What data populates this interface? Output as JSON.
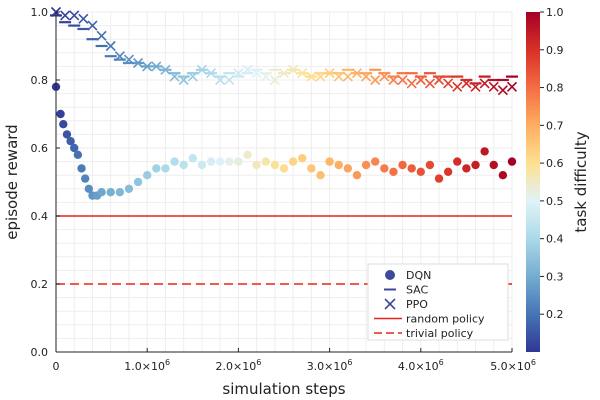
{
  "chart_data": {
    "type": "scatter",
    "xlabel": "simulation steps",
    "ylabel": "episode reward",
    "xlim": [
      0,
      5000000
    ],
    "ylim": [
      0,
      1
    ],
    "x_ticks": [
      0,
      1000000,
      2000000,
      3000000,
      4000000,
      5000000
    ],
    "x_tick_labels": [
      "0",
      "1.0×10",
      "2.0×10",
      "3.0×10",
      "4.0×10",
      "5.0×10"
    ],
    "x_tick_exponent": "6",
    "y_ticks": [
      0,
      0.2,
      0.4,
      0.6,
      0.8,
      1.0
    ],
    "y_tick_labels": [
      "0.0",
      "0.2",
      "0.4",
      "0.6",
      "0.8",
      "1.0"
    ],
    "grid": true,
    "legend_position": "bottom-right",
    "colorbar": {
      "label": "task difficulty",
      "range": [
        0.1,
        1.0
      ],
      "ticks": [
        0.2,
        0.3,
        0.4,
        0.5,
        0.6,
        0.7,
        0.8,
        0.9,
        1.0
      ],
      "tick_labels": [
        "0.2",
        "0.3",
        "0.4",
        "0.5",
        "0.6",
        "0.7",
        "0.8",
        "0.9",
        "1.0"
      ],
      "colormap": [
        "#313695",
        "#4575b4",
        "#74add1",
        "#abd9e9",
        "#e0f3f8",
        "#fee090",
        "#fdae61",
        "#f46d43",
        "#d73027",
        "#a50026"
      ]
    },
    "series": [
      {
        "name": "DQN",
        "marker": "circle",
        "points": [
          [
            0,
            0.78
          ],
          [
            50000,
            0.7
          ],
          [
            80000,
            0.67
          ],
          [
            120000,
            0.64
          ],
          [
            160000,
            0.62
          ],
          [
            200000,
            0.6
          ],
          [
            240000,
            0.58
          ],
          [
            280000,
            0.54
          ],
          [
            320000,
            0.51
          ],
          [
            360000,
            0.48
          ],
          [
            400000,
            0.46
          ],
          [
            450000,
            0.46
          ],
          [
            500000,
            0.47
          ],
          [
            600000,
            0.47
          ],
          [
            700000,
            0.47
          ],
          [
            800000,
            0.48
          ],
          [
            900000,
            0.5
          ],
          [
            1000000,
            0.52
          ],
          [
            1100000,
            0.54
          ],
          [
            1200000,
            0.54
          ],
          [
            1300000,
            0.56
          ],
          [
            1400000,
            0.55
          ],
          [
            1500000,
            0.57
          ],
          [
            1600000,
            0.55
          ],
          [
            1700000,
            0.56
          ],
          [
            1800000,
            0.56
          ],
          [
            1900000,
            0.56
          ],
          [
            2000000,
            0.56
          ],
          [
            2100000,
            0.58
          ],
          [
            2200000,
            0.55
          ],
          [
            2300000,
            0.56
          ],
          [
            2400000,
            0.55
          ],
          [
            2500000,
            0.54
          ],
          [
            2600000,
            0.56
          ],
          [
            2700000,
            0.57
          ],
          [
            2800000,
            0.54
          ],
          [
            2900000,
            0.52
          ],
          [
            3000000,
            0.56
          ],
          [
            3100000,
            0.55
          ],
          [
            3200000,
            0.54
          ],
          [
            3300000,
            0.52
          ],
          [
            3400000,
            0.55
          ],
          [
            3500000,
            0.56
          ],
          [
            3600000,
            0.54
          ],
          [
            3700000,
            0.53
          ],
          [
            3800000,
            0.55
          ],
          [
            3900000,
            0.54
          ],
          [
            4000000,
            0.53
          ],
          [
            4100000,
            0.55
          ],
          [
            4200000,
            0.51
          ],
          [
            4300000,
            0.53
          ],
          [
            4400000,
            0.56
          ],
          [
            4500000,
            0.54
          ],
          [
            4600000,
            0.55
          ],
          [
            4700000,
            0.59
          ],
          [
            4800000,
            0.55
          ],
          [
            4900000,
            0.52
          ],
          [
            5000000,
            0.56
          ]
        ]
      },
      {
        "name": "SAC",
        "marker": "hline",
        "points": [
          [
            0,
            0.99
          ],
          [
            100000,
            0.97
          ],
          [
            200000,
            0.96
          ],
          [
            300000,
            0.95
          ],
          [
            400000,
            0.92
          ],
          [
            500000,
            0.9
          ],
          [
            600000,
            0.87
          ],
          [
            700000,
            0.86
          ],
          [
            800000,
            0.85
          ],
          [
            900000,
            0.85
          ],
          [
            1000000,
            0.84
          ],
          [
            1100000,
            0.84
          ],
          [
            1200000,
            0.83
          ],
          [
            1300000,
            0.82
          ],
          [
            1400000,
            0.81
          ],
          [
            1500000,
            0.82
          ],
          [
            1600000,
            0.83
          ],
          [
            1700000,
            0.82
          ],
          [
            1800000,
            0.81
          ],
          [
            1900000,
            0.82
          ],
          [
            2000000,
            0.81
          ],
          [
            2100000,
            0.82
          ],
          [
            2200000,
            0.83
          ],
          [
            2300000,
            0.82
          ],
          [
            2400000,
            0.83
          ],
          [
            2500000,
            0.82
          ],
          [
            2600000,
            0.83
          ],
          [
            2700000,
            0.82
          ],
          [
            2800000,
            0.81
          ],
          [
            2900000,
            0.82
          ],
          [
            3000000,
            0.82
          ],
          [
            3100000,
            0.82
          ],
          [
            3200000,
            0.83
          ],
          [
            3300000,
            0.82
          ],
          [
            3400000,
            0.82
          ],
          [
            3500000,
            0.83
          ],
          [
            3600000,
            0.82
          ],
          [
            3700000,
            0.81
          ],
          [
            3800000,
            0.82
          ],
          [
            3900000,
            0.82
          ],
          [
            4000000,
            0.81
          ],
          [
            4100000,
            0.82
          ],
          [
            4200000,
            0.81
          ],
          [
            4300000,
            0.81
          ],
          [
            4400000,
            0.81
          ],
          [
            4500000,
            0.8
          ],
          [
            4600000,
            0.79
          ],
          [
            4700000,
            0.81
          ],
          [
            4800000,
            0.8
          ],
          [
            4900000,
            0.8
          ],
          [
            5000000,
            0.81
          ]
        ]
      },
      {
        "name": "PPO",
        "marker": "cross",
        "points": [
          [
            0,
            1.0
          ],
          [
            100000,
            0.99
          ],
          [
            200000,
            0.99
          ],
          [
            300000,
            0.98
          ],
          [
            400000,
            0.96
          ],
          [
            500000,
            0.93
          ],
          [
            600000,
            0.9
          ],
          [
            700000,
            0.87
          ],
          [
            800000,
            0.86
          ],
          [
            900000,
            0.85
          ],
          [
            1000000,
            0.84
          ],
          [
            1100000,
            0.84
          ],
          [
            1200000,
            0.83
          ],
          [
            1300000,
            0.81
          ],
          [
            1400000,
            0.8
          ],
          [
            1500000,
            0.81
          ],
          [
            1600000,
            0.83
          ],
          [
            1700000,
            0.82
          ],
          [
            1800000,
            0.8
          ],
          [
            1900000,
            0.8
          ],
          [
            2000000,
            0.82
          ],
          [
            2100000,
            0.83
          ],
          [
            2200000,
            0.82
          ],
          [
            2300000,
            0.81
          ],
          [
            2400000,
            0.8
          ],
          [
            2500000,
            0.82
          ],
          [
            2600000,
            0.83
          ],
          [
            2700000,
            0.82
          ],
          [
            2800000,
            0.81
          ],
          [
            2900000,
            0.81
          ],
          [
            3000000,
            0.82
          ],
          [
            3100000,
            0.81
          ],
          [
            3200000,
            0.81
          ],
          [
            3300000,
            0.82
          ],
          [
            3400000,
            0.81
          ],
          [
            3500000,
            0.8
          ],
          [
            3600000,
            0.81
          ],
          [
            3700000,
            0.8
          ],
          [
            3800000,
            0.8
          ],
          [
            3900000,
            0.79
          ],
          [
            4000000,
            0.8
          ],
          [
            4100000,
            0.79
          ],
          [
            4200000,
            0.8
          ],
          [
            4300000,
            0.79
          ],
          [
            4400000,
            0.78
          ],
          [
            4500000,
            0.79
          ],
          [
            4600000,
            0.78
          ],
          [
            4700000,
            0.79
          ],
          [
            4800000,
            0.78
          ],
          [
            4900000,
            0.77
          ],
          [
            5000000,
            0.78
          ]
        ]
      },
      {
        "name": "random policy",
        "type": "hline",
        "style": "solid",
        "color": "#e8231b",
        "y": 0.4
      },
      {
        "name": "trivial policy",
        "type": "hline",
        "style": "dashed",
        "color": "#e8231b",
        "y": 0.2
      }
    ],
    "legend_marker_color": "#3b4a9a"
  }
}
